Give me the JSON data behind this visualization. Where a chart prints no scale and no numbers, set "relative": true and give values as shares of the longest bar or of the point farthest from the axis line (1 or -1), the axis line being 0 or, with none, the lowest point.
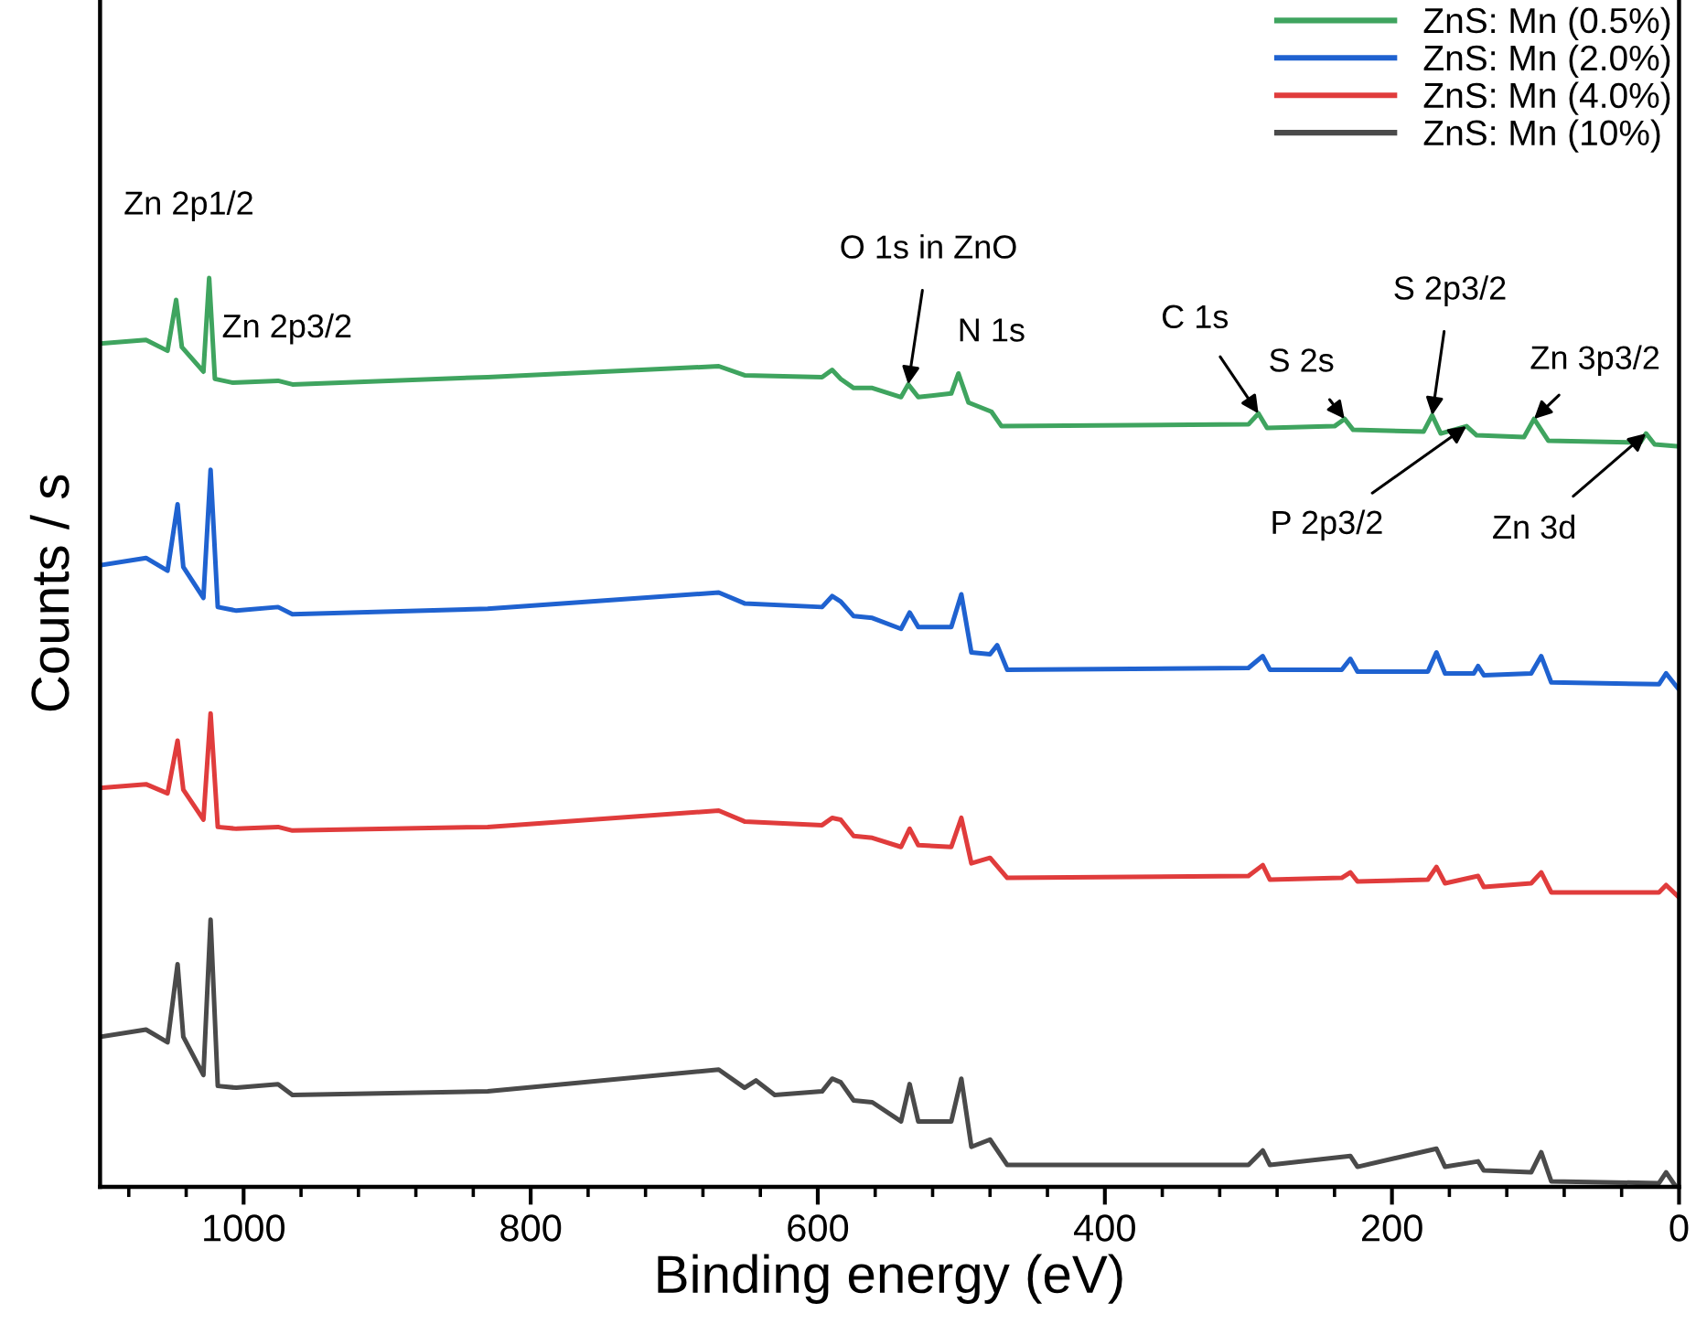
{
  "chart_data": {
    "type": "line",
    "relative": true,
    "xlabel": "Binding energy (eV)",
    "ylabel": "Counts / s",
    "tick_labels": "x",
    "legend": "top right",
    "grid": false,
    "xlim": [
      1100,
      0
    ],
    "xticks": [
      {
        "value": 1080,
        "label": null
      },
      {
        "value": 1040,
        "label": null
      },
      1000,
      {
        "value": 960,
        "label": null
      },
      {
        "value": 920,
        "label": null
      },
      {
        "value": 880,
        "label": null
      },
      {
        "value": 840,
        "label": null
      },
      800,
      {
        "value": 760,
        "label": null
      },
      {
        "value": 720,
        "label": null
      },
      {
        "value": 680,
        "label": null
      },
      {
        "value": 640,
        "label": null
      },
      600,
      {
        "value": 560,
        "label": null
      },
      {
        "value": 520,
        "label": null
      },
      {
        "value": 480,
        "label": null
      },
      {
        "value": 440,
        "label": null
      },
      400,
      {
        "value": 360,
        "label": null
      },
      {
        "value": 320,
        "label": null
      },
      {
        "value": 280,
        "label": null
      },
      {
        "value": 240,
        "label": null
      },
      200,
      {
        "value": 160,
        "label": null
      },
      {
        "value": 120,
        "label": null
      },
      {
        "value": 80,
        "label": null
      },
      {
        "value": 40,
        "label": null
      },
      0
    ],
    "series": [
      {
        "name": "ZnS: Mn (0.5%)",
        "color": "#3fa45f",
        "x": [
          1100,
          1068,
          1053,
          1047,
          1043,
          1028,
          1024,
          1020,
          1008,
          976,
          966,
          830,
          669,
          651,
          597,
          590,
          584,
          575,
          562,
          542,
          537,
          530,
          507,
          502,
          495,
          479,
          472,
          300,
          293,
          287,
          240,
          233,
          227,
          178,
          172,
          166,
          148,
          141,
          108,
          101,
          91,
          27,
          23,
          17,
          1
        ],
        "values": [
          0.928,
          0.932,
          0.92,
          0.976,
          0.924,
          0.897,
          1.0,
          0.889,
          0.885,
          0.887,
          0.883,
          0.891,
          0.903,
          0.893,
          0.891,
          0.899,
          0.889,
          0.879,
          0.879,
          0.869,
          0.883,
          0.869,
          0.873,
          0.895,
          0.863,
          0.853,
          0.837,
          0.839,
          0.851,
          0.835,
          0.837,
          0.845,
          0.833,
          0.831,
          0.849,
          0.829,
          0.837,
          0.827,
          0.825,
          0.845,
          0.821,
          0.819,
          0.829,
          0.817,
          0.815
        ]
      },
      {
        "name": "ZnS: Mn (2.0%)",
        "color": "#1f62d0",
        "x": [
          1100,
          1068,
          1053,
          1046,
          1042,
          1028,
          1023,
          1018,
          1005,
          976,
          966,
          830,
          669,
          651,
          597,
          590,
          584,
          575,
          562,
          542,
          536,
          530,
          507,
          500,
          493,
          480,
          475,
          468,
          300,
          290,
          285,
          235,
          229,
          224,
          175,
          169,
          163,
          143,
          140,
          136,
          103,
          96,
          89,
          14,
          9,
          1
        ],
        "values": [
          0.684,
          0.692,
          0.678,
          0.751,
          0.682,
          0.648,
          0.789,
          0.638,
          0.634,
          0.638,
          0.63,
          0.636,
          0.654,
          0.642,
          0.638,
          0.65,
          0.644,
          0.628,
          0.626,
          0.614,
          0.632,
          0.616,
          0.616,
          0.652,
          0.588,
          0.586,
          0.596,
          0.569,
          0.571,
          0.584,
          0.569,
          0.569,
          0.581,
          0.567,
          0.567,
          0.588,
          0.565,
          0.565,
          0.573,
          0.563,
          0.565,
          0.584,
          0.555,
          0.553,
          0.565,
          0.549
        ]
      },
      {
        "name": "ZnS: Mn (4.0%)",
        "color": "#e03c3c",
        "x": [
          1100,
          1068,
          1053,
          1046,
          1042,
          1028,
          1023,
          1018,
          1005,
          976,
          966,
          830,
          669,
          651,
          597,
          590,
          584,
          575,
          562,
          542,
          536,
          530,
          507,
          500,
          493,
          480,
          468,
          300,
          290,
          285,
          235,
          229,
          224,
          175,
          169,
          163,
          140,
          136,
          103,
          96,
          89,
          14,
          9,
          1
        ],
        "values": [
          0.439,
          0.443,
          0.433,
          0.491,
          0.437,
          0.404,
          0.521,
          0.396,
          0.394,
          0.396,
          0.392,
          0.396,
          0.414,
          0.402,
          0.398,
          0.406,
          0.404,
          0.386,
          0.384,
          0.374,
          0.394,
          0.376,
          0.374,
          0.406,
          0.356,
          0.362,
          0.34,
          0.342,
          0.354,
          0.338,
          0.34,
          0.346,
          0.336,
          0.338,
          0.352,
          0.334,
          0.342,
          0.33,
          0.334,
          0.346,
          0.324,
          0.324,
          0.332,
          0.32
        ]
      },
      {
        "name": "ZnS: Mn (10%)",
        "color": "#4a4a4a",
        "x": [
          1100,
          1068,
          1053,
          1046,
          1042,
          1028,
          1023,
          1018,
          1005,
          976,
          966,
          830,
          669,
          651,
          643,
          630,
          597,
          590,
          584,
          575,
          562,
          542,
          536,
          530,
          507,
          500,
          493,
          480,
          468,
          300,
          290,
          285,
          229,
          224,
          169,
          163,
          140,
          136,
          103,
          96,
          89,
          14,
          9,
          3
        ],
        "values": [
          0.165,
          0.173,
          0.159,
          0.245,
          0.165,
          0.123,
          0.294,
          0.111,
          0.109,
          0.113,
          0.101,
          0.105,
          0.129,
          0.109,
          0.117,
          0.101,
          0.105,
          0.119,
          0.115,
          0.095,
          0.093,
          0.072,
          0.113,
          0.072,
          0.072,
          0.119,
          0.044,
          0.052,
          0.024,
          0.024,
          0.04,
          0.024,
          0.034,
          0.022,
          0.042,
          0.022,
          0.028,
          0.018,
          0.016,
          0.038,
          0.006,
          0.004,
          0.016,
          0.002
        ]
      }
    ],
    "annotations": [
      {
        "text": "Zn 2p1/2",
        "x": 1047,
        "y": 0.976
      },
      {
        "text": "Zn 2p3/2",
        "x": 1024,
        "y": 1.0
      },
      {
        "text": "O 1s in ZnO",
        "x": 537,
        "y": 0.883
      },
      {
        "text": "N 1s",
        "x": 502,
        "y": 0.895
      },
      {
        "text": "C 1s",
        "x": 293,
        "y": 0.851
      },
      {
        "text": "S 2s",
        "x": 233,
        "y": 0.845
      },
      {
        "text": "S 2p3/2",
        "x": 172,
        "y": 0.849
      },
      {
        "text": "Zn 3p3/2",
        "x": 101,
        "y": 0.845
      },
      {
        "text": "P 2p3/2",
        "x": 148,
        "y": 0.837
      },
      {
        "text": "Zn 3d",
        "x": 23,
        "y": 0.829
      }
    ]
  }
}
